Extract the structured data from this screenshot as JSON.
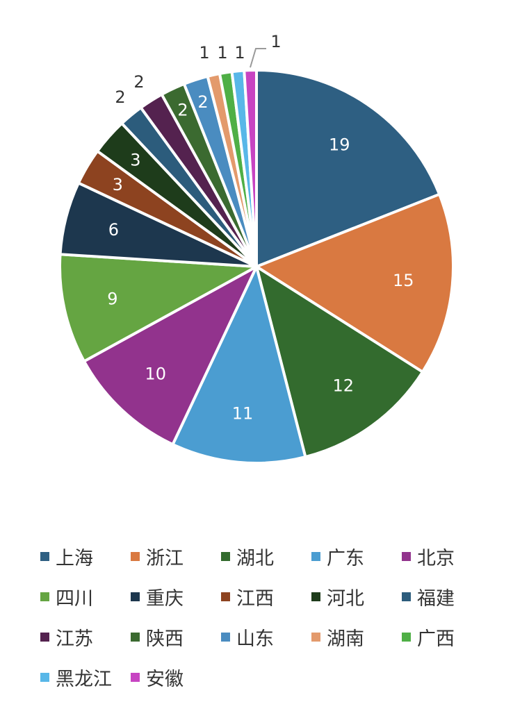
{
  "chart_data": {
    "type": "pie",
    "title": "",
    "legend_position": "bottom",
    "start_angle_deg": 0,
    "direction": "clockwise",
    "slices": [
      {
        "label": "上海",
        "value": 19,
        "color": "#2E5F82"
      },
      {
        "label": "浙江",
        "value": 15,
        "color": "#D97941"
      },
      {
        "label": "湖北",
        "value": 12,
        "color": "#336B2E"
      },
      {
        "label": "广东",
        "value": 11,
        "color": "#4B9DD1"
      },
      {
        "label": "北京",
        "value": 10,
        "color": "#92338D"
      },
      {
        "label": "四川",
        "value": 9,
        "color": "#65A542"
      },
      {
        "label": "重庆",
        "value": 6,
        "color": "#1D374E"
      },
      {
        "label": "江西",
        "value": 3,
        "color": "#8D4320"
      },
      {
        "label": "河北",
        "value": 3,
        "color": "#1E3C1B"
      },
      {
        "label": "福建",
        "value": 2,
        "color": "#2C5C7C"
      },
      {
        "label": "江苏",
        "value": 2,
        "color": "#54224F"
      },
      {
        "label": "陕西",
        "value": 2,
        "color": "#3B6A30"
      },
      {
        "label": "山东",
        "value": 2,
        "color": "#4A8CC0"
      },
      {
        "label": "湖南",
        "value": 1,
        "color": "#E39A6C"
      },
      {
        "label": "广西",
        "value": 1,
        "color": "#4FAF46"
      },
      {
        "label": "黑龙江",
        "value": 1,
        "color": "#58B7E8"
      },
      {
        "label": "安徽",
        "value": 1,
        "color": "#C744C2"
      }
    ]
  }
}
